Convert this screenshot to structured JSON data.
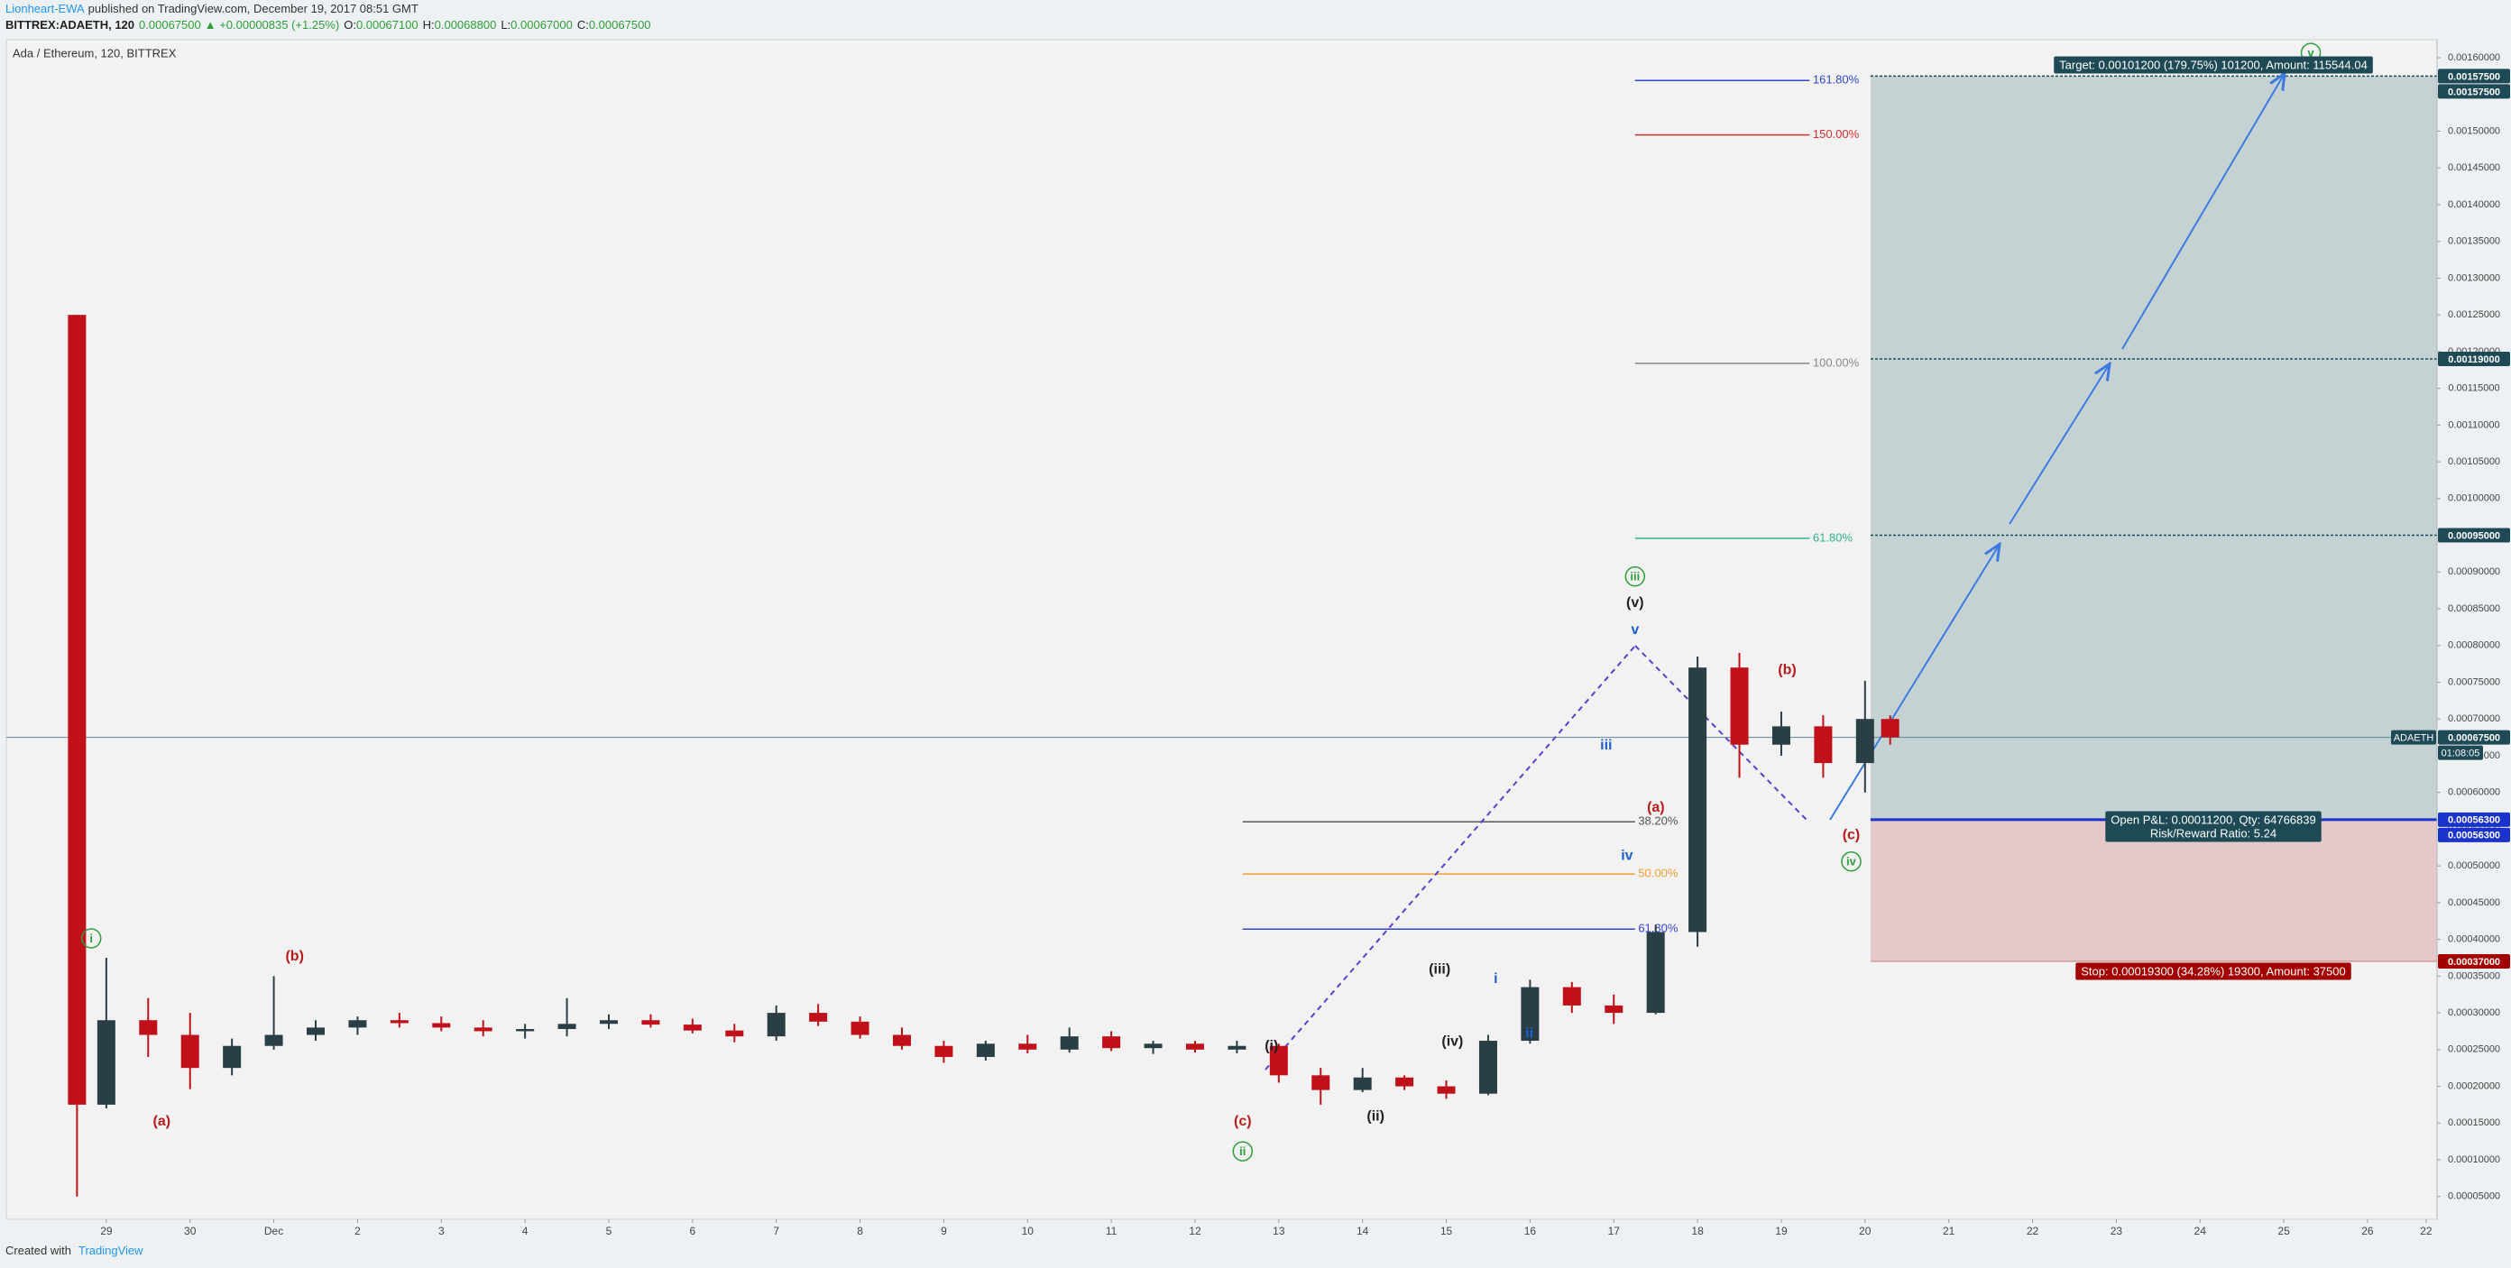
{
  "header": {
    "author": "Lionheart-EWA",
    "published": "published on TradingView.com, December 19, 2017 08:51 GMT",
    "symbol": "BITTREX:ADAETH, 120",
    "last": "0.00067500",
    "change": "▲ +0.00000835 (+1.25%)",
    "ohlc": [
      {
        "key": "O:",
        "value": "0.00067100"
      },
      {
        "key": "H:",
        "value": "0.00068800"
      },
      {
        "key": "L:",
        "value": "0.00067000"
      },
      {
        "key": "C:",
        "value": "0.00067500"
      }
    ]
  },
  "footer": {
    "created": "Created with",
    "brand": "TradingView"
  },
  "chart_data": {
    "type": "candlestick",
    "title": "Ada / Ethereum, 120, BITTREX",
    "up_color": "#2a3f45",
    "down_color": "#c0101a",
    "x": [
      -2.35,
      -2.0,
      -1.5,
      -1.0,
      -0.5,
      0.0,
      0.5,
      1.0,
      1.5,
      2.0,
      2.5,
      3.0,
      3.5,
      4.0,
      4.5,
      5.0,
      5.5,
      6.0,
      6.5,
      7.0,
      7.5,
      8.0,
      8.5,
      9.0,
      9.5,
      10.0,
      10.5,
      11.0,
      11.5,
      12.0,
      12.5,
      13.0,
      13.5,
      14.0,
      14.5,
      15.0,
      15.5,
      16.0,
      16.5,
      17.0,
      17.5,
      18.0,
      18.5,
      19.0,
      19.3
    ],
    "open": [
      0.00125,
      0.000175,
      0.00029,
      0.00027,
      0.000225,
      0.000255,
      0.00027,
      0.00028,
      0.00029,
      0.000286,
      0.00028,
      0.000275,
      0.000278,
      0.000285,
      0.00029,
      0.000284,
      0.000276,
      0.000268,
      0.0003,
      0.000288,
      0.00027,
      0.000255,
      0.00024,
      0.000258,
      0.00025,
      0.000268,
      0.000252,
      0.000258,
      0.00025,
      0.000255,
      0.000215,
      0.000195,
      0.000212,
      0.0002,
      0.00019,
      0.000262,
      0.000335,
      0.00031,
      0.0003,
      0.00041,
      0.00077,
      0.000665,
      0.00069,
      0.00064,
      0.0007
    ],
    "high": [
      0.00125,
      0.000375,
      0.00032,
      0.0003,
      0.000265,
      0.00035,
      0.00029,
      0.000295,
      0.0003,
      0.000295,
      0.00029,
      0.000285,
      0.00032,
      0.000298,
      0.000298,
      0.000292,
      0.000285,
      0.00031,
      0.000312,
      0.000295,
      0.00028,
      0.000262,
      0.000262,
      0.00027,
      0.00028,
      0.000275,
      0.000262,
      0.000262,
      0.000262,
      0.000258,
      0.000225,
      0.000225,
      0.000215,
      0.000208,
      0.00027,
      0.000345,
      0.000342,
      0.000325,
      0.00042,
      0.000785,
      0.00079,
      0.00071,
      0.000705,
      0.000752,
      0.000705
    ],
    "low": [
      5e-05,
      0.00017,
      0.00024,
      0.000196,
      0.000215,
      0.00025,
      0.000262,
      0.00027,
      0.00028,
      0.000275,
      0.000268,
      0.000265,
      0.000268,
      0.000278,
      0.00028,
      0.000272,
      0.00026,
      0.000262,
      0.000282,
      0.000265,
      0.00025,
      0.000232,
      0.000235,
      0.000245,
      0.000246,
      0.000248,
      0.000244,
      0.000246,
      0.000245,
      0.000205,
      0.000175,
      0.000192,
      0.000195,
      0.000183,
      0.000188,
      0.000258,
      0.0003,
      0.000285,
      0.000298,
      0.00039,
      0.00062,
      0.00065,
      0.00062,
      0.0006,
      0.000665
    ],
    "close": [
      0.000175,
      0.00029,
      0.00027,
      0.000225,
      0.000255,
      0.00027,
      0.00028,
      0.00029,
      0.000286,
      0.00028,
      0.000275,
      0.000278,
      0.000285,
      0.00029,
      0.000284,
      0.000276,
      0.000268,
      0.0003,
      0.000288,
      0.00027,
      0.000255,
      0.00024,
      0.000258,
      0.00025,
      0.000268,
      0.000252,
      0.000258,
      0.00025,
      0.000255,
      0.000215,
      0.000195,
      0.000212,
      0.0002,
      0.00019,
      0.000262,
      0.000335,
      0.00031,
      0.0003,
      0.00041,
      0.00077,
      0.000665,
      0.00069,
      0.00064,
      0.0007,
      0.000675
    ],
    "xlim": [
      -3.194,
      25.83
    ],
    "xticks": [
      {
        "value": -2,
        "label": "29"
      },
      {
        "value": -1,
        "label": "30"
      },
      {
        "value": 0,
        "label": "Dec"
      },
      {
        "value": 1,
        "label": "2"
      },
      {
        "value": 2,
        "label": "3"
      },
      {
        "value": 3,
        "label": "4"
      },
      {
        "value": 4,
        "label": "5"
      },
      {
        "value": 5,
        "label": "6"
      },
      {
        "value": 6,
        "label": "7"
      },
      {
        "value": 7,
        "label": "8"
      },
      {
        "value": 8,
        "label": "9"
      },
      {
        "value": 9,
        "label": "10"
      },
      {
        "value": 10,
        "label": "11"
      },
      {
        "value": 11,
        "label": "12"
      },
      {
        "value": 12,
        "label": "13"
      },
      {
        "value": 13,
        "label": "14"
      },
      {
        "value": 14,
        "label": "15"
      },
      {
        "value": 15,
        "label": "16"
      },
      {
        "value": 16,
        "label": "17"
      },
      {
        "value": 17,
        "label": "18"
      },
      {
        "value": 18,
        "label": "19"
      },
      {
        "value": 19,
        "label": "20"
      },
      {
        "value": 20,
        "label": "21"
      },
      {
        "value": 21,
        "label": "22"
      },
      {
        "value": 22,
        "label": "23"
      },
      {
        "value": 23,
        "label": "24"
      },
      {
        "value": 24,
        "label": "25"
      },
      {
        "value": 25,
        "label": "26"
      },
      {
        "value": 25.7,
        "label": "22"
      }
    ],
    "ylim": [
      1.9e-05,
      0.0016246
    ],
    "yticks": [
      {
        "value": 5e-05,
        "label": "0.00005000"
      },
      {
        "value": 0.0001,
        "label": "0.00010000"
      },
      {
        "value": 0.00015,
        "label": "0.00015000"
      },
      {
        "value": 0.0002,
        "label": "0.00020000"
      },
      {
        "value": 0.00025,
        "label": "0.00025000"
      },
      {
        "value": 0.0003,
        "label": "0.00030000"
      },
      {
        "value": 0.00035,
        "label": "0.00035000"
      },
      {
        "value": 0.0004,
        "label": "0.00040000"
      },
      {
        "value": 0.00045,
        "label": "0.00045000"
      },
      {
        "value": 0.0005,
        "label": "0.00050000"
      },
      {
        "value": 0.00055,
        "label": "0.00055000"
      },
      {
        "value": 0.0006,
        "label": "0.00060000"
      },
      {
        "value": 0.00065,
        "label": "0.00065000"
      },
      {
        "value": 0.0007,
        "label": "0.00070000"
      },
      {
        "value": 0.00075,
        "label": "0.00075000"
      },
      {
        "value": 0.0008,
        "label": "0.00080000"
      },
      {
        "value": 0.00085,
        "label": "0.00085000"
      },
      {
        "value": 0.0009,
        "label": "0.00090000"
      },
      {
        "value": 0.00095,
        "label": "0.00095000"
      },
      {
        "value": 0.001,
        "label": "0.00100000"
      },
      {
        "value": 0.00105,
        "label": "0.00105000"
      },
      {
        "value": 0.0011,
        "label": "0.00110000"
      },
      {
        "value": 0.00115,
        "label": "0.00115000"
      },
      {
        "value": 0.0012,
        "label": "0.00120000"
      },
      {
        "value": 0.00125,
        "label": "0.00125000"
      },
      {
        "value": 0.0013,
        "label": "0.00130000"
      },
      {
        "value": 0.00135,
        "label": "0.00135000"
      },
      {
        "value": 0.0014,
        "label": "0.00140000"
      },
      {
        "value": 0.00145,
        "label": "0.00145000"
      },
      {
        "value": 0.0015,
        "label": "0.00150000"
      },
      {
        "value": 0.00155,
        "label": "0.00155000"
      },
      {
        "value": 0.0016,
        "label": "0.00160000"
      }
    ],
    "grid": false,
    "price_tags": [
      {
        "value": 0.001575,
        "label": "0.00157500",
        "color": "#1d4a55"
      },
      {
        "value": 0.001575,
        "label": "0.00157500",
        "color": "#1d4a55"
      },
      {
        "value": 0.00119,
        "label": "0.00119000",
        "color": "#1d4a55"
      },
      {
        "value": 0.00095,
        "label": "0.00095000",
        "color": "#1d4a55"
      },
      {
        "value": 0.000675,
        "label": "0.00067500",
        "color": "#1d4a55"
      },
      {
        "value": 0.000563,
        "label": "0.00056300",
        "color": "#1a33cc"
      },
      {
        "value": 0.000563,
        "label": "0.00056300",
        "color": "#1a33cc"
      },
      {
        "value": 0.00037,
        "label": "0.00037000",
        "color": "#a30000"
      }
    ],
    "symbol_tag": "ADAETH",
    "countdown": "01:08:05",
    "position": {
      "entry": 0.000563,
      "target": 0.001575,
      "stop": 0.00037,
      "levels": [
        0.00119,
        0.00095
      ],
      "target_label": "Target: 0.00101200 (179.75%) 101200, Amount: 115544.04",
      "pnl_label": "Open P&L: 0.00011200, Qty: 64766839",
      "rr_label": "Risk/Reward Ratio: 5.24",
      "stop_label": "Stop: 0.00019300 (34.28%) 19300, Amount: 37500",
      "profit_color": "#c5d2d3",
      "loss_color": "#e5c8ca"
    },
    "fibs": [
      {
        "levels": [
          {
            "label": "38.20%",
            "price": 0.00056,
            "color": "#555555"
          },
          {
            "label": "50.00%",
            "price": 0.000489,
            "color": "#f0a030"
          },
          {
            "label": "61.80%",
            "price": 0.000414,
            "color": "#3344cc"
          }
        ]
      },
      {
        "levels": [
          {
            "label": "61.80%",
            "price": 0.000946,
            "color": "#2fb58d"
          },
          {
            "label": "100.00%",
            "price": 0.001184,
            "color": "#888888"
          },
          {
            "label": "150.00%",
            "price": 0.001495,
            "color": "#d32f2f"
          },
          {
            "label": "161.80%",
            "price": 0.001569,
            "color": "#3344cc"
          }
        ]
      }
    ],
    "wave_labels": [
      {
        "color": "#2e9e3a",
        "circled": true,
        "labels": [
          "i",
          "ii",
          "iii",
          "iv",
          "v"
        ]
      },
      {
        "color": "#b71c1c",
        "circled": false,
        "labels": [
          "(a)",
          "(b)",
          "(c)",
          "(a)",
          "(b)",
          "(c)"
        ]
      },
      {
        "color": "#222222",
        "circled": false,
        "labels": [
          "(i)",
          "(ii)",
          "(iii)",
          "(iv)",
          "(v)"
        ]
      },
      {
        "color": "#1e5fd0",
        "circled": false,
        "labels": [
          "i",
          "ii",
          "iii",
          "iv",
          "v"
        ]
      }
    ]
  }
}
